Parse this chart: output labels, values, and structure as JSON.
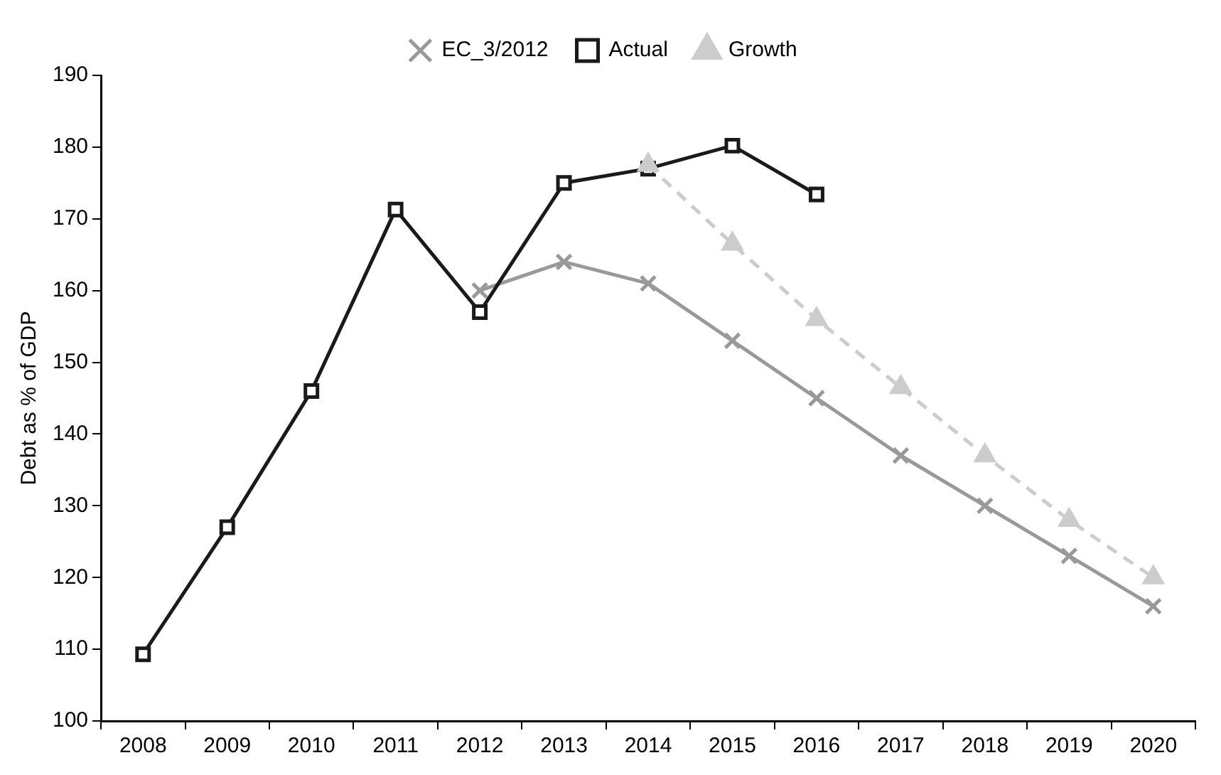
{
  "chart_data": {
    "type": "line",
    "ylabel": "Debt as % of GDP",
    "categories": [
      "2008",
      "2009",
      "2010",
      "2011",
      "2012",
      "2013",
      "2014",
      "2015",
      "2016",
      "2017",
      "2018",
      "2019",
      "2020"
    ],
    "series": [
      {
        "name": "EC_3/2012",
        "color": "#999999",
        "marker": "cross",
        "line_style": "solid",
        "values": [
          null,
          null,
          null,
          null,
          160,
          164,
          161,
          153,
          145,
          137,
          130,
          123,
          116
        ]
      },
      {
        "name": "Actual",
        "color": "#1a1a1a",
        "marker": "square",
        "line_style": "solid",
        "values": [
          109.3,
          127,
          146,
          171.3,
          157,
          175,
          177,
          180.2,
          173.4,
          null,
          null,
          null,
          null
        ]
      },
      {
        "name": "Growth",
        "color": "#cccccc",
        "marker": "triangle",
        "line_style": "dashed",
        "values": [
          null,
          null,
          null,
          null,
          null,
          null,
          177.5,
          166.5,
          156,
          146.5,
          137,
          128,
          120
        ]
      }
    ],
    "ylim": [
      100,
      190
    ],
    "yticks": [
      100,
      110,
      120,
      130,
      140,
      150,
      160,
      170,
      180,
      190
    ],
    "grid": false,
    "legend": "top"
  }
}
